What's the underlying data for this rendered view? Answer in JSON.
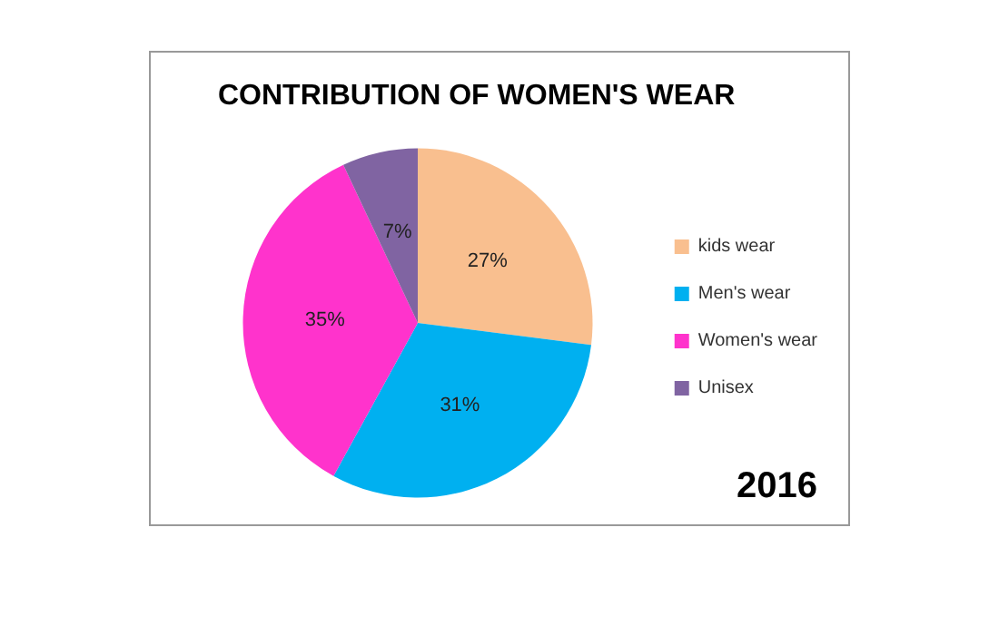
{
  "chart_data": {
    "type": "pie",
    "title": "CONTRIBUTION OF WOMEN'S WEAR",
    "categories": [
      "kids wear",
      "Men's wear",
      "Women's wear",
      "Unisex"
    ],
    "values": [
      27,
      31,
      35,
      7
    ],
    "value_labels": [
      "27%",
      "31%",
      "35%",
      "7%"
    ],
    "colors": [
      "#f9bf8f",
      "#00b0f0",
      "#ff33cc",
      "#8064a2"
    ],
    "legend": "right",
    "annotations": [
      "2016"
    ]
  }
}
